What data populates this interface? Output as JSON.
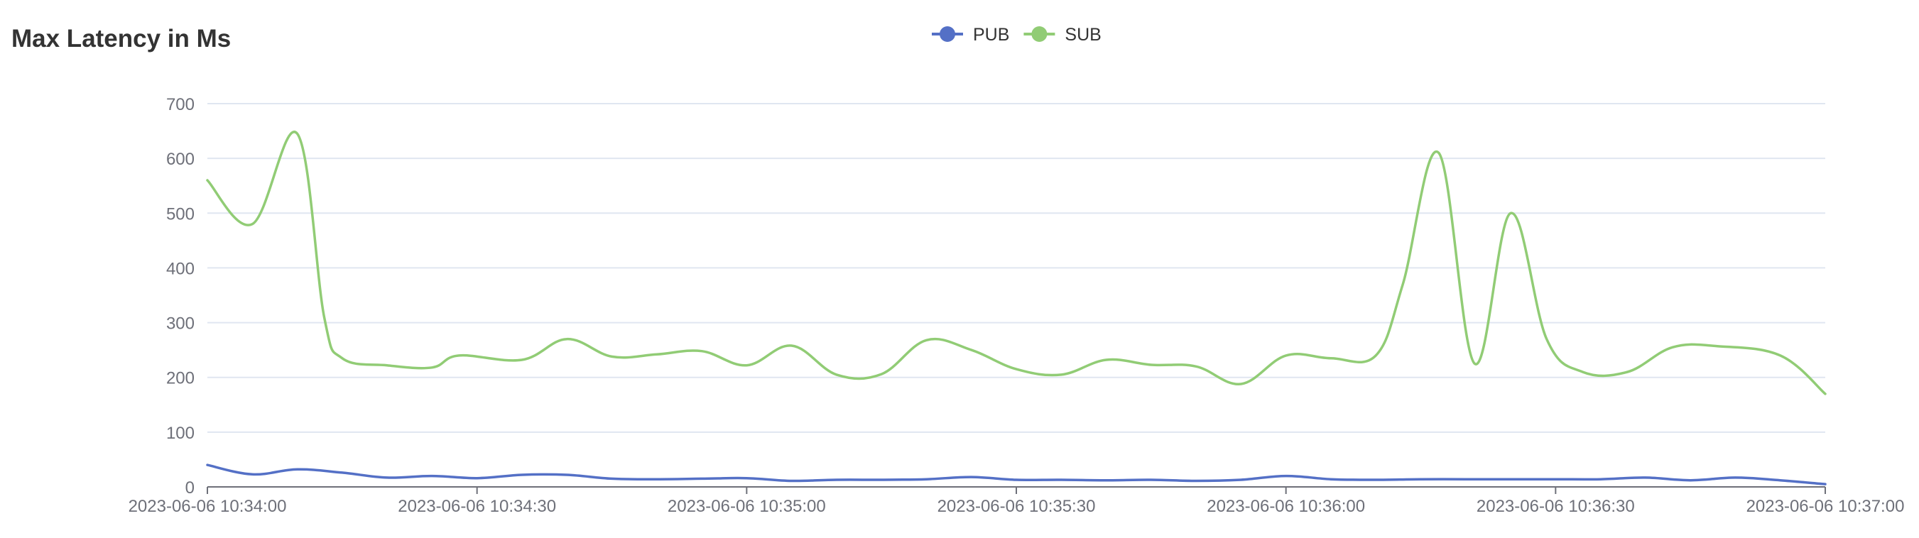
{
  "chart_data": {
    "type": "line",
    "title": "Max Latency in Ms",
    "xlabel": "",
    "ylabel": "",
    "ylim": [
      0,
      700
    ],
    "yticks": [
      0,
      100,
      200,
      300,
      400,
      500,
      600,
      700
    ],
    "xlim": [
      "2023-06-06 10:34:00",
      "2023-06-06 10:37:00"
    ],
    "xticks": [
      "2023-06-06 10:34:00",
      "2023-06-06 10:34:30",
      "2023-06-06 10:35:00",
      "2023-06-06 10:35:30",
      "2023-06-06 10:36:00",
      "2023-06-06 10:36:30",
      "2023-06-06 10:37:00"
    ],
    "grid": true,
    "smooth": true,
    "legend_position": "top-center",
    "series": [
      {
        "name": "PUB",
        "color": "#5470c6",
        "points": [
          [
            "2023-06-06 10:34:00",
            40
          ],
          [
            "2023-06-06 10:34:05",
            23
          ],
          [
            "2023-06-06 10:34:10",
            32
          ],
          [
            "2023-06-06 10:34:15",
            26
          ],
          [
            "2023-06-06 10:34:20",
            17
          ],
          [
            "2023-06-06 10:34:25",
            20
          ],
          [
            "2023-06-06 10:34:30",
            16
          ],
          [
            "2023-06-06 10:34:35",
            22
          ],
          [
            "2023-06-06 10:34:40",
            22
          ],
          [
            "2023-06-06 10:34:45",
            15
          ],
          [
            "2023-06-06 10:34:50",
            14
          ],
          [
            "2023-06-06 10:34:55",
            15
          ],
          [
            "2023-06-06 10:35:00",
            16
          ],
          [
            "2023-06-06 10:35:05",
            11
          ],
          [
            "2023-06-06 10:35:10",
            13
          ],
          [
            "2023-06-06 10:35:15",
            13
          ],
          [
            "2023-06-06 10:35:20",
            14
          ],
          [
            "2023-06-06 10:35:25",
            18
          ],
          [
            "2023-06-06 10:35:30",
            13
          ],
          [
            "2023-06-06 10:35:35",
            13
          ],
          [
            "2023-06-06 10:35:40",
            12
          ],
          [
            "2023-06-06 10:35:45",
            13
          ],
          [
            "2023-06-06 10:35:50",
            11
          ],
          [
            "2023-06-06 10:35:55",
            13
          ],
          [
            "2023-06-06 10:36:00",
            20
          ],
          [
            "2023-06-06 10:36:05",
            14
          ],
          [
            "2023-06-06 10:36:10",
            13
          ],
          [
            "2023-06-06 10:36:15",
            14
          ],
          [
            "2023-06-06 10:36:20",
            14
          ],
          [
            "2023-06-06 10:36:25",
            14
          ],
          [
            "2023-06-06 10:36:30",
            14
          ],
          [
            "2023-06-06 10:36:35",
            14
          ],
          [
            "2023-06-06 10:36:40",
            17
          ],
          [
            "2023-06-06 10:36:45",
            12
          ],
          [
            "2023-06-06 10:36:50",
            17
          ],
          [
            "2023-06-06 10:36:55",
            12
          ],
          [
            "2023-06-06 10:37:00",
            5
          ]
        ]
      },
      {
        "name": "SUB",
        "color": "#91cc75",
        "points": [
          [
            "2023-06-06 10:34:00",
            560
          ],
          [
            "2023-06-06 10:34:05",
            480
          ],
          [
            "2023-06-06 10:34:10",
            645
          ],
          [
            "2023-06-06 10:34:13",
            310
          ],
          [
            "2023-06-06 10:34:15",
            235
          ],
          [
            "2023-06-06 10:34:20",
            222
          ],
          [
            "2023-06-06 10:34:25",
            218
          ],
          [
            "2023-06-06 10:34:28",
            240
          ],
          [
            "2023-06-06 10:34:35",
            232
          ],
          [
            "2023-06-06 10:34:40",
            270
          ],
          [
            "2023-06-06 10:34:45",
            238
          ],
          [
            "2023-06-06 10:34:50",
            242
          ],
          [
            "2023-06-06 10:34:55",
            248
          ],
          [
            "2023-06-06 10:35:00",
            222
          ],
          [
            "2023-06-06 10:35:05",
            258
          ],
          [
            "2023-06-06 10:35:10",
            205
          ],
          [
            "2023-06-06 10:35:15",
            206
          ],
          [
            "2023-06-06 10:35:20",
            268
          ],
          [
            "2023-06-06 10:35:25",
            250
          ],
          [
            "2023-06-06 10:35:30",
            215
          ],
          [
            "2023-06-06 10:35:35",
            205
          ],
          [
            "2023-06-06 10:35:40",
            232
          ],
          [
            "2023-06-06 10:35:45",
            223
          ],
          [
            "2023-06-06 10:35:50",
            220
          ],
          [
            "2023-06-06 10:35:55",
            188
          ],
          [
            "2023-06-06 10:36:00",
            240
          ],
          [
            "2023-06-06 10:36:05",
            235
          ],
          [
            "2023-06-06 10:36:10",
            240
          ],
          [
            "2023-06-06 10:36:13",
            370
          ],
          [
            "2023-06-06 10:36:17",
            610
          ],
          [
            "2023-06-06 10:36:21",
            225
          ],
          [
            "2023-06-06 10:36:25",
            500
          ],
          [
            "2023-06-06 10:36:29",
            270
          ],
          [
            "2023-06-06 10:36:33",
            210
          ],
          [
            "2023-06-06 10:36:38",
            210
          ],
          [
            "2023-06-06 10:36:43",
            255
          ],
          [
            "2023-06-06 10:36:48",
            257
          ],
          [
            "2023-06-06 10:36:55",
            240
          ],
          [
            "2023-06-06 10:37:00",
            170
          ]
        ]
      }
    ]
  }
}
